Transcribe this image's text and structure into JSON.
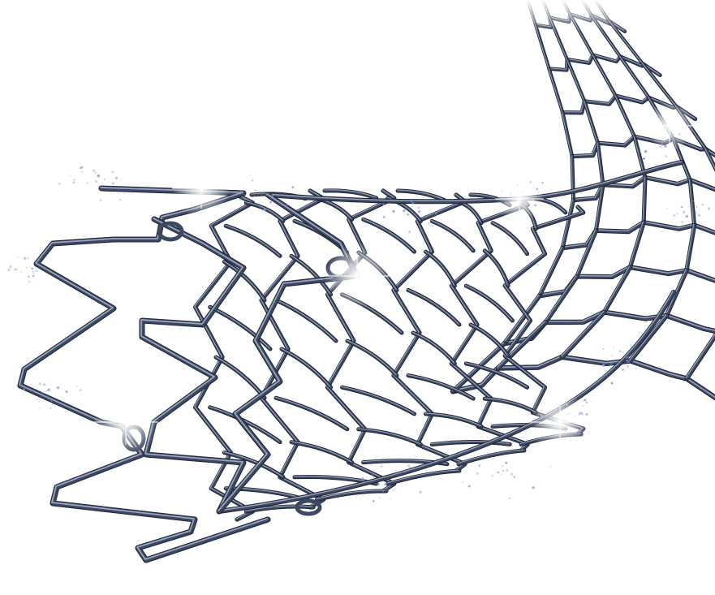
{
  "image": {
    "subject": "stent-illustration",
    "background_color": "#ffffff",
    "colors": {
      "metal_dark": "#1e2533",
      "metal_mid": "#3d4862",
      "metal_light": "#9aa6bf",
      "highlight": "#ffffff",
      "sparkle_particles": "#8b8fd6"
    }
  }
}
